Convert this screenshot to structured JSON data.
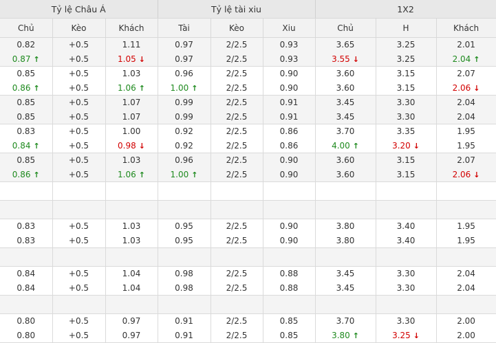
{
  "groups": [
    "Tỷ lệ Châu Á",
    "Tỷ lệ tài xiu",
    "1X2"
  ],
  "subheaders": [
    "Chủ",
    "Kèo",
    "Khách",
    "Tài",
    "Kèo",
    "Xiu",
    "Chủ",
    "H",
    "Khách"
  ],
  "colors": {
    "up": "#1e8a1e",
    "down": "#d20000"
  },
  "rows": [
    {
      "type": "data",
      "alt": true,
      "cells": [
        [
          [
            "0.82",
            ""
          ],
          [
            "0.87",
            "up"
          ]
        ],
        [
          [
            "+0.5",
            ""
          ],
          [
            "+0.5",
            ""
          ]
        ],
        [
          [
            "1.11",
            ""
          ],
          [
            "1.05",
            "down"
          ]
        ],
        [
          [
            "0.97",
            ""
          ],
          [
            "0.97",
            ""
          ]
        ],
        [
          [
            "2/2.5",
            ""
          ],
          [
            "2/2.5",
            ""
          ]
        ],
        [
          [
            "0.93",
            ""
          ],
          [
            "0.93",
            ""
          ]
        ],
        [
          [
            "3.65",
            ""
          ],
          [
            "3.55",
            "down"
          ]
        ],
        [
          [
            "3.25",
            ""
          ],
          [
            "3.25",
            ""
          ]
        ],
        [
          [
            "2.01",
            ""
          ],
          [
            "2.04",
            "up"
          ]
        ]
      ]
    },
    {
      "type": "data",
      "alt": false,
      "cells": [
        [
          [
            "0.85",
            ""
          ],
          [
            "0.86",
            "up"
          ]
        ],
        [
          [
            "+0.5",
            ""
          ],
          [
            "+0.5",
            ""
          ]
        ],
        [
          [
            "1.03",
            ""
          ],
          [
            "1.06",
            "up"
          ]
        ],
        [
          [
            "0.96",
            ""
          ],
          [
            "1.00",
            "up"
          ]
        ],
        [
          [
            "2/2.5",
            ""
          ],
          [
            "2/2.5",
            ""
          ]
        ],
        [
          [
            "0.90",
            ""
          ],
          [
            "0.90",
            ""
          ]
        ],
        [
          [
            "3.60",
            ""
          ],
          [
            "3.60",
            ""
          ]
        ],
        [
          [
            "3.15",
            ""
          ],
          [
            "3.15",
            ""
          ]
        ],
        [
          [
            "2.07",
            ""
          ],
          [
            "2.06",
            "down"
          ]
        ]
      ]
    },
    {
      "type": "data",
      "alt": true,
      "cells": [
        [
          [
            "0.85",
            ""
          ],
          [
            "0.85",
            ""
          ]
        ],
        [
          [
            "+0.5",
            ""
          ],
          [
            "+0.5",
            ""
          ]
        ],
        [
          [
            "1.07",
            ""
          ],
          [
            "1.07",
            ""
          ]
        ],
        [
          [
            "0.99",
            ""
          ],
          [
            "0.99",
            ""
          ]
        ],
        [
          [
            "2/2.5",
            ""
          ],
          [
            "2/2.5",
            ""
          ]
        ],
        [
          [
            "0.91",
            ""
          ],
          [
            "0.91",
            ""
          ]
        ],
        [
          [
            "3.45",
            ""
          ],
          [
            "3.45",
            ""
          ]
        ],
        [
          [
            "3.30",
            ""
          ],
          [
            "3.30",
            ""
          ]
        ],
        [
          [
            "2.04",
            ""
          ],
          [
            "2.04",
            ""
          ]
        ]
      ]
    },
    {
      "type": "data",
      "alt": false,
      "cells": [
        [
          [
            "0.83",
            ""
          ],
          [
            "0.84",
            "up"
          ]
        ],
        [
          [
            "+0.5",
            ""
          ],
          [
            "+0.5",
            ""
          ]
        ],
        [
          [
            "1.00",
            ""
          ],
          [
            "0.98",
            "down"
          ]
        ],
        [
          [
            "0.92",
            ""
          ],
          [
            "0.92",
            ""
          ]
        ],
        [
          [
            "2/2.5",
            ""
          ],
          [
            "2/2.5",
            ""
          ]
        ],
        [
          [
            "0.86",
            ""
          ],
          [
            "0.86",
            ""
          ]
        ],
        [
          [
            "3.70",
            ""
          ],
          [
            "4.00",
            "up"
          ]
        ],
        [
          [
            "3.35",
            ""
          ],
          [
            "3.20",
            "down"
          ]
        ],
        [
          [
            "1.95",
            ""
          ],
          [
            "1.95",
            ""
          ]
        ]
      ]
    },
    {
      "type": "data",
      "alt": true,
      "cells": [
        [
          [
            "0.85",
            ""
          ],
          [
            "0.86",
            "up"
          ]
        ],
        [
          [
            "+0.5",
            ""
          ],
          [
            "+0.5",
            ""
          ]
        ],
        [
          [
            "1.03",
            ""
          ],
          [
            "1.06",
            "up"
          ]
        ],
        [
          [
            "0.96",
            ""
          ],
          [
            "1.00",
            "up"
          ]
        ],
        [
          [
            "2/2.5",
            ""
          ],
          [
            "2/2.5",
            ""
          ]
        ],
        [
          [
            "0.90",
            ""
          ],
          [
            "0.90",
            ""
          ]
        ],
        [
          [
            "3.60",
            ""
          ],
          [
            "3.60",
            ""
          ]
        ],
        [
          [
            "3.15",
            ""
          ],
          [
            "3.15",
            ""
          ]
        ],
        [
          [
            "2.07",
            ""
          ],
          [
            "2.06",
            "down"
          ]
        ]
      ]
    },
    {
      "type": "empty",
      "alt": false
    },
    {
      "type": "empty",
      "alt": true
    },
    {
      "type": "data",
      "alt": false,
      "cells": [
        [
          [
            "0.83",
            ""
          ],
          [
            "0.83",
            ""
          ]
        ],
        [
          [
            "+0.5",
            ""
          ],
          [
            "+0.5",
            ""
          ]
        ],
        [
          [
            "1.03",
            ""
          ],
          [
            "1.03",
            ""
          ]
        ],
        [
          [
            "0.95",
            ""
          ],
          [
            "0.95",
            ""
          ]
        ],
        [
          [
            "2/2.5",
            ""
          ],
          [
            "2/2.5",
            ""
          ]
        ],
        [
          [
            "0.90",
            ""
          ],
          [
            "0.90",
            ""
          ]
        ],
        [
          [
            "3.80",
            ""
          ],
          [
            "3.80",
            ""
          ]
        ],
        [
          [
            "3.40",
            ""
          ],
          [
            "3.40",
            ""
          ]
        ],
        [
          [
            "1.95",
            ""
          ],
          [
            "1.95",
            ""
          ]
        ]
      ]
    },
    {
      "type": "empty",
      "alt": true
    },
    {
      "type": "data",
      "alt": false,
      "cells": [
        [
          [
            "0.84",
            ""
          ],
          [
            "0.84",
            ""
          ]
        ],
        [
          [
            "+0.5",
            ""
          ],
          [
            "+0.5",
            ""
          ]
        ],
        [
          [
            "1.04",
            ""
          ],
          [
            "1.04",
            ""
          ]
        ],
        [
          [
            "0.98",
            ""
          ],
          [
            "0.98",
            ""
          ]
        ],
        [
          [
            "2/2.5",
            ""
          ],
          [
            "2/2.5",
            ""
          ]
        ],
        [
          [
            "0.88",
            ""
          ],
          [
            "0.88",
            ""
          ]
        ],
        [
          [
            "3.45",
            ""
          ],
          [
            "3.45",
            ""
          ]
        ],
        [
          [
            "3.30",
            ""
          ],
          [
            "3.30",
            ""
          ]
        ],
        [
          [
            "2.04",
            ""
          ],
          [
            "2.04",
            ""
          ]
        ]
      ]
    },
    {
      "type": "empty",
      "alt": true
    },
    {
      "type": "data",
      "alt": false,
      "cells": [
        [
          [
            "0.80",
            ""
          ],
          [
            "0.80",
            ""
          ]
        ],
        [
          [
            "+0.5",
            ""
          ],
          [
            "+0.5",
            ""
          ]
        ],
        [
          [
            "0.97",
            ""
          ],
          [
            "0.97",
            ""
          ]
        ],
        [
          [
            "0.91",
            ""
          ],
          [
            "0.91",
            ""
          ]
        ],
        [
          [
            "2/2.5",
            ""
          ],
          [
            "2/2.5",
            ""
          ]
        ],
        [
          [
            "0.85",
            ""
          ],
          [
            "0.85",
            ""
          ]
        ],
        [
          [
            "3.70",
            ""
          ],
          [
            "3.80",
            "up"
          ]
        ],
        [
          [
            "3.30",
            ""
          ],
          [
            "3.25",
            "down"
          ]
        ],
        [
          [
            "2.00",
            ""
          ],
          [
            "2.00",
            ""
          ]
        ]
      ]
    }
  ]
}
